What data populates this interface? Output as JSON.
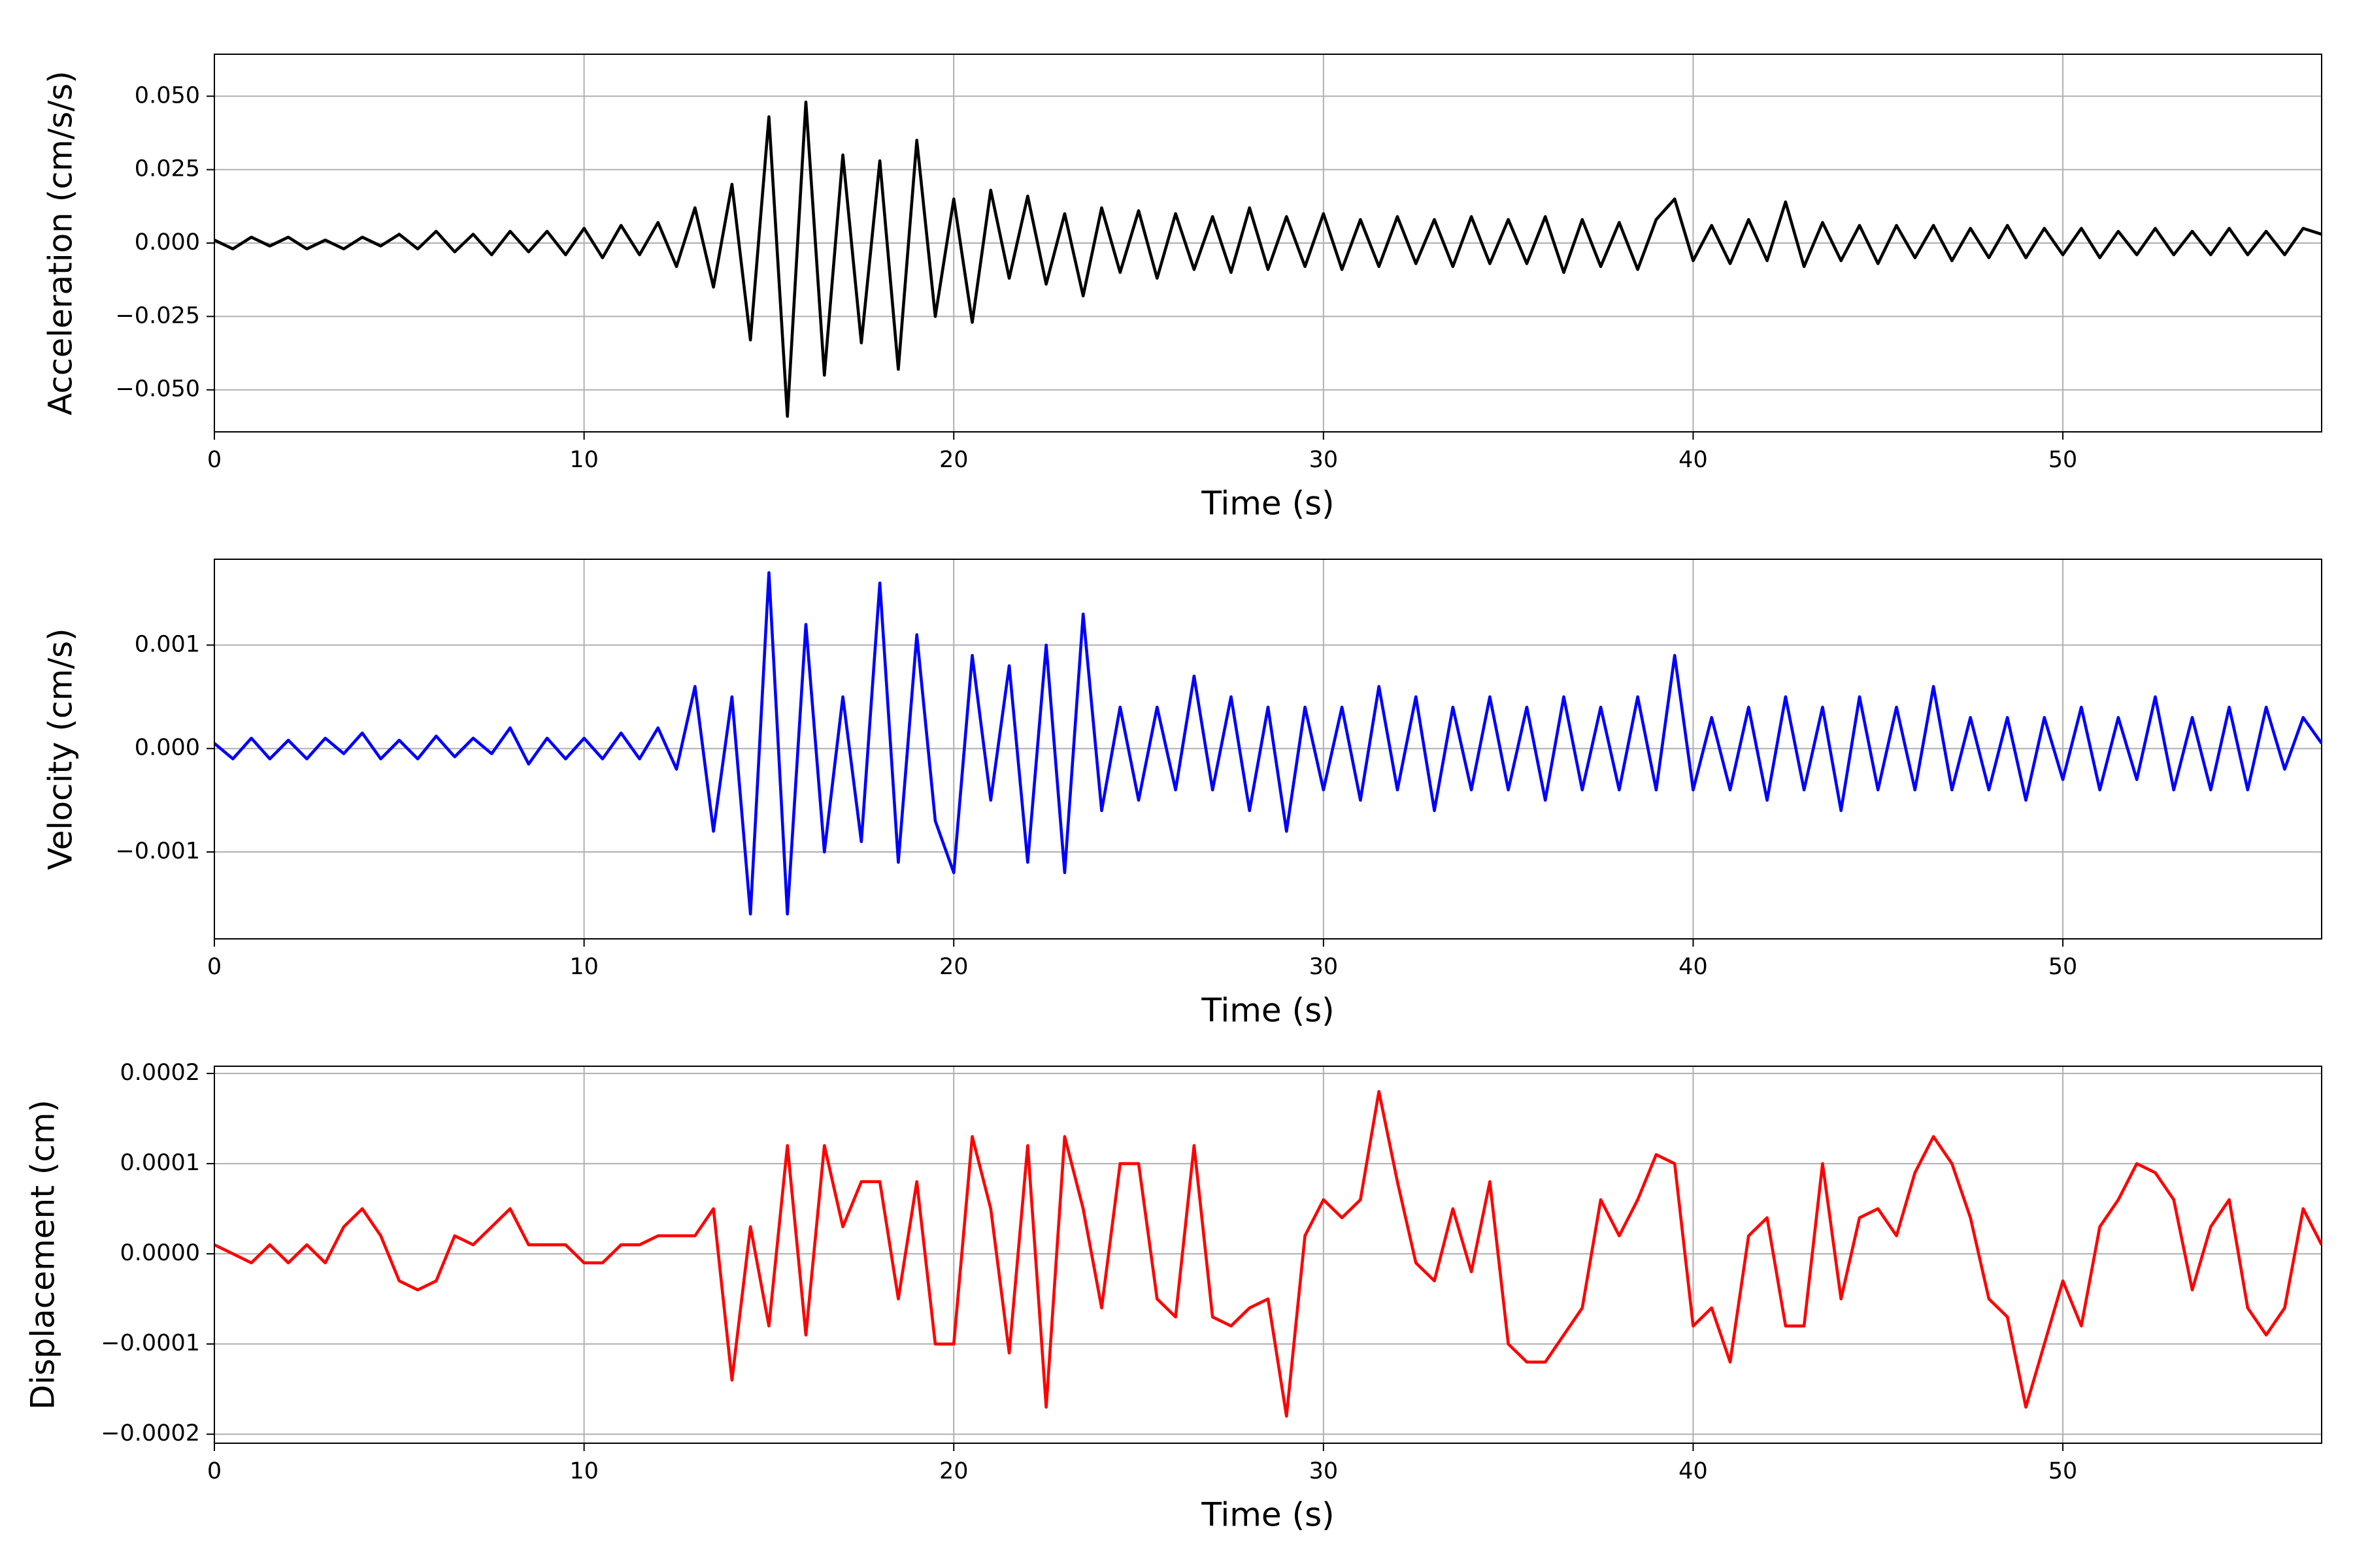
{
  "chart_data": [
    {
      "type": "line",
      "xlabel": "Time (s)",
      "ylabel": "Acceleration (cm/s/s)",
      "x": [
        0,
        0.5,
        1,
        1.5,
        2,
        2.5,
        3,
        3.5,
        4,
        4.5,
        5,
        5.5,
        6,
        6.5,
        7,
        7.5,
        8,
        8.5,
        9,
        9.5,
        10,
        10.5,
        11,
        11.5,
        12,
        12.5,
        13,
        13.5,
        14,
        14.5,
        15,
        15.5,
        16,
        16.5,
        17,
        17.5,
        18,
        18.5,
        19,
        19.5,
        20,
        20.5,
        21,
        21.5,
        22,
        22.5,
        23,
        23.5,
        24,
        24.5,
        25,
        25.5,
        26,
        26.5,
        27,
        27.5,
        28,
        28.5,
        29,
        29.5,
        30,
        30.5,
        31,
        31.5,
        32,
        32.5,
        33,
        33.5,
        34,
        34.5,
        35,
        35.5,
        36,
        36.5,
        37,
        37.5,
        38,
        38.5,
        39,
        39.5,
        40,
        40.5,
        41,
        41.5,
        42,
        42.5,
        43,
        43.5,
        44,
        44.5,
        45,
        45.5,
        46,
        46.5,
        47,
        47.5,
        48,
        48.5,
        49,
        49.5,
        50,
        50.5,
        51,
        51.5,
        52,
        52.5,
        53,
        53.5,
        54,
        54.5,
        55,
        55.5,
        56,
        56.5,
        57
      ],
      "series": [
        {
          "color": "#000000",
          "values": [
            0.001,
            -0.002,
            0.002,
            -0.001,
            0.002,
            -0.002,
            0.001,
            -0.002,
            0.002,
            -0.001,
            0.003,
            -0.002,
            0.004,
            -0.003,
            0.003,
            -0.004,
            0.004,
            -0.003,
            0.004,
            -0.004,
            0.005,
            -0.005,
            0.006,
            -0.004,
            0.007,
            -0.008,
            0.012,
            -0.015,
            0.02,
            -0.033,
            0.043,
            -0.059,
            0.048,
            -0.045,
            0.03,
            -0.034,
            0.028,
            -0.043,
            0.035,
            -0.025,
            0.015,
            -0.027,
            0.018,
            -0.012,
            0.016,
            -0.014,
            0.01,
            -0.018,
            0.012,
            -0.01,
            0.011,
            -0.012,
            0.01,
            -0.009,
            0.009,
            -0.01,
            0.012,
            -0.009,
            0.009,
            -0.008,
            0.01,
            -0.009,
            0.008,
            -0.008,
            0.009,
            -0.007,
            0.008,
            -0.008,
            0.009,
            -0.007,
            0.008,
            -0.007,
            0.009,
            -0.01,
            0.008,
            -0.008,
            0.007,
            -0.009,
            0.008,
            0.015,
            -0.006,
            0.006,
            -0.007,
            0.008,
            -0.006,
            0.014,
            -0.008,
            0.007,
            -0.006,
            0.006,
            -0.007,
            0.006,
            -0.005,
            0.006,
            -0.006,
            0.005,
            -0.005,
            0.006,
            -0.005,
            0.005,
            -0.004,
            0.005,
            -0.005,
            0.004,
            -0.004,
            0.005,
            -0.004,
            0.004,
            -0.004,
            0.005,
            -0.004,
            0.004,
            -0.004,
            0.005,
            0.003
          ]
        }
      ],
      "xlim": [
        0,
        57
      ],
      "xticks": [
        0,
        10,
        20,
        30,
        40,
        50
      ],
      "ylim": [
        -0.0643,
        0.0643
      ],
      "yticks": [
        {
          "value": -0.05,
          "label": "−0.050"
        },
        {
          "value": -0.025,
          "label": "−0.025"
        },
        {
          "value": 0,
          "label": "0.000"
        },
        {
          "value": 0.025,
          "label": "0.025"
        },
        {
          "value": 0.05,
          "label": "0.050"
        }
      ],
      "grid": true
    },
    {
      "type": "line",
      "xlabel": "Time (s)",
      "ylabel": "Velocity (cm/s)",
      "x": [
        0,
        0.5,
        1,
        1.5,
        2,
        2.5,
        3,
        3.5,
        4,
        4.5,
        5,
        5.5,
        6,
        6.5,
        7,
        7.5,
        8,
        8.5,
        9,
        9.5,
        10,
        10.5,
        11,
        11.5,
        12,
        12.5,
        13,
        13.5,
        14,
        14.5,
        15,
        15.5,
        16,
        16.5,
        17,
        17.5,
        18,
        18.5,
        19,
        19.5,
        20,
        20.5,
        21,
        21.5,
        22,
        22.5,
        23,
        23.5,
        24,
        24.5,
        25,
        25.5,
        26,
        26.5,
        27,
        27.5,
        28,
        28.5,
        29,
        29.5,
        30,
        30.5,
        31,
        31.5,
        32,
        32.5,
        33,
        33.5,
        34,
        34.5,
        35,
        35.5,
        36,
        36.5,
        37,
        37.5,
        38,
        38.5,
        39,
        39.5,
        40,
        40.5,
        41,
        41.5,
        42,
        42.5,
        43,
        43.5,
        44,
        44.5,
        45,
        45.5,
        46,
        46.5,
        47,
        47.5,
        48,
        48.5,
        49,
        49.5,
        50,
        50.5,
        51,
        51.5,
        52,
        52.5,
        53,
        53.5,
        54,
        54.5,
        55,
        55.5,
        56,
        56.5,
        57
      ],
      "series": [
        {
          "color": "#0000ff",
          "values": [
            5e-05,
            -0.0001,
            0.0001,
            -0.0001,
            8e-05,
            -0.0001,
            0.0001,
            -5e-05,
            0.00015,
            -0.0001,
            8e-05,
            -0.0001,
            0.00012,
            -8e-05,
            0.0001,
            -5e-05,
            0.0002,
            -0.00015,
            0.0001,
            -0.0001,
            0.0001,
            -0.0001,
            0.00015,
            -0.0001,
            0.0002,
            -0.0002,
            0.0006,
            -0.0008,
            0.0005,
            -0.0016,
            0.0017,
            -0.0016,
            0.0012,
            -0.001,
            0.0005,
            -0.0009,
            0.0016,
            -0.0011,
            0.0011,
            -0.0007,
            -0.0012,
            0.0009,
            -0.0005,
            0.0008,
            -0.0011,
            0.001,
            -0.0012,
            0.0013,
            -0.0006,
            0.0004,
            -0.0005,
            0.0004,
            -0.0004,
            0.0007,
            -0.0004,
            0.0005,
            -0.0006,
            0.0004,
            -0.0008,
            0.0004,
            -0.0004,
            0.0004,
            -0.0005,
            0.0006,
            -0.0004,
            0.0005,
            -0.0006,
            0.0004,
            -0.0004,
            0.0005,
            -0.0004,
            0.0004,
            -0.0005,
            0.0005,
            -0.0004,
            0.0004,
            -0.0004,
            0.0005,
            -0.0004,
            0.0009,
            -0.0004,
            0.0003,
            -0.0004,
            0.0004,
            -0.0005,
            0.0005,
            -0.0004,
            0.0004,
            -0.0006,
            0.0005,
            -0.0004,
            0.0004,
            -0.0004,
            0.0006,
            -0.0004,
            0.0003,
            -0.0004,
            0.0003,
            -0.0005,
            0.0003,
            -0.0003,
            0.0004,
            -0.0004,
            0.0003,
            -0.0003,
            0.0005,
            -0.0004,
            0.0003,
            -0.0004,
            0.0004,
            -0.0004,
            0.0004,
            -0.0002,
            0.0003,
            5e-05
          ]
        }
      ],
      "xlim": [
        0,
        57
      ],
      "xticks": [
        0,
        10,
        20,
        30,
        40,
        50
      ],
      "ylim": [
        -0.00184,
        0.00183
      ],
      "yticks": [
        {
          "value": -0.001,
          "label": "−0.001"
        },
        {
          "value": 0,
          "label": "0.000"
        },
        0.001
      ],
      "grid": true
    },
    {
      "type": "line",
      "xlabel": "Time (s)",
      "ylabel": "Displacement (cm)",
      "x": [
        0,
        0.5,
        1,
        1.5,
        2,
        2.5,
        3,
        3.5,
        4,
        4.5,
        5,
        5.5,
        6,
        6.5,
        7,
        7.5,
        8,
        8.5,
        9,
        9.5,
        10,
        10.5,
        11,
        11.5,
        12,
        12.5,
        13,
        13.5,
        14,
        14.5,
        15,
        15.5,
        16,
        16.5,
        17,
        17.5,
        18,
        18.5,
        19,
        19.5,
        20,
        20.5,
        21,
        21.5,
        22,
        22.5,
        23,
        23.5,
        24,
        24.5,
        25,
        25.5,
        26,
        26.5,
        27,
        27.5,
        28,
        28.5,
        29,
        29.5,
        30,
        30.5,
        31,
        31.5,
        32,
        32.5,
        33,
        33.5,
        34,
        34.5,
        35,
        35.5,
        36,
        36.5,
        37,
        37.5,
        38,
        38.5,
        39,
        39.5,
        40,
        40.5,
        41,
        41.5,
        42,
        42.5,
        43,
        43.5,
        44,
        44.5,
        45,
        45.5,
        46,
        46.5,
        47,
        47.5,
        48,
        48.5,
        49,
        49.5,
        50,
        50.5,
        51,
        51.5,
        52,
        52.5,
        53,
        53.5,
        54,
        54.5,
        55,
        55.5,
        56,
        56.5,
        57
      ],
      "series": [
        {
          "color": "#ff0000",
          "values": [
            1e-05,
            0,
            -1e-05,
            1e-05,
            -1e-05,
            1e-05,
            -1e-05,
            3e-05,
            5e-05,
            2e-05,
            -3e-05,
            -4e-05,
            -3e-05,
            2e-05,
            1e-05,
            3e-05,
            5e-05,
            1e-05,
            1e-05,
            1e-05,
            -1e-05,
            -1e-05,
            1e-05,
            1e-05,
            2e-05,
            2e-05,
            2e-05,
            5e-05,
            -0.00014,
            3e-05,
            -8e-05,
            0.00012,
            -9e-05,
            0.00012,
            3e-05,
            8e-05,
            8e-05,
            -5e-05,
            8e-05,
            -0.0001,
            -0.0001,
            0.00013,
            5e-05,
            -0.00011,
            0.00012,
            -0.00017,
            0.00013,
            5e-05,
            -6e-05,
            0.0001,
            0.0001,
            -5e-05,
            -7e-05,
            0.00012,
            -7e-05,
            -8e-05,
            -6e-05,
            -5e-05,
            -0.00018,
            2e-05,
            6e-05,
            4e-05,
            6e-05,
            0.00018,
            8e-05,
            -1e-05,
            -3e-05,
            5e-05,
            -2e-05,
            8e-05,
            -0.0001,
            -0.00012,
            -0.00012,
            -9e-05,
            -6e-05,
            6e-05,
            2e-05,
            6e-05,
            0.00011,
            0.0001,
            -8e-05,
            -6e-05,
            -0.00012,
            2e-05,
            4e-05,
            -8e-05,
            -8e-05,
            0.0001,
            -5e-05,
            4e-05,
            5e-05,
            2e-05,
            9e-05,
            0.00013,
            0.0001,
            4e-05,
            -5e-05,
            -7e-05,
            -0.00017,
            -0.0001,
            -3e-05,
            -8e-05,
            3e-05,
            6e-05,
            0.0001,
            9e-05,
            6e-05,
            -4e-05,
            3e-05,
            6e-05,
            -6e-05,
            -9e-05,
            -6e-05,
            5e-05,
            1e-05
          ]
        }
      ],
      "xlim": [
        0,
        57
      ],
      "xticks": [
        0,
        10,
        20,
        30,
        40,
        50
      ],
      "ylim": [
        -0.00021,
        0.000208
      ],
      "yticks": [
        {
          "value": -0.0002,
          "label": "−0.0002"
        },
        {
          "value": -0.0001,
          "label": "−0.0001"
        },
        {
          "value": 0,
          "label": "0.0000"
        },
        0.0001,
        0.0002
      ],
      "grid": true
    }
  ]
}
